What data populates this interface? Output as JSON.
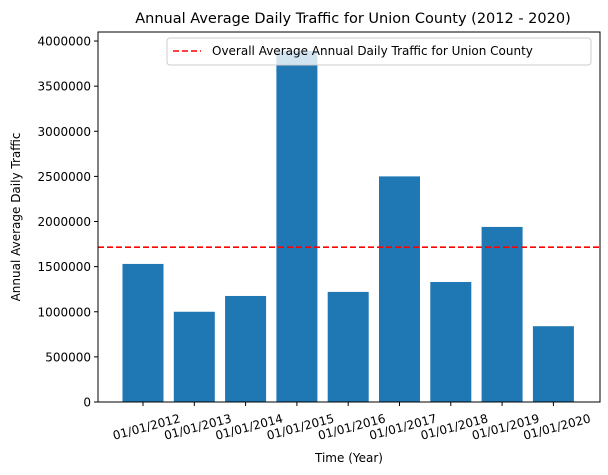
{
  "chart_data": {
    "type": "bar",
    "title": "Annual Average Daily Traffic for Union County (2012 - 2020)",
    "xlabel": "Time (Year)",
    "ylabel": "Annual Average Daily Traffic",
    "categories": [
      "01/01/2012",
      "01/01/2013",
      "01/01/2014",
      "01/01/2015",
      "01/01/2016",
      "01/01/2017",
      "01/01/2018",
      "01/01/2019",
      "01/01/2020"
    ],
    "values": [
      1530000,
      1000000,
      1175000,
      3890000,
      1220000,
      2500000,
      1330000,
      1940000,
      840000
    ],
    "ylim": [
      0,
      4100000
    ],
    "yticks": [
      0,
      500000,
      1000000,
      1500000,
      2000000,
      2500000,
      3000000,
      3500000,
      4000000
    ],
    "ytick_labels": [
      "0",
      "500000",
      "1000000",
      "1500000",
      "2000000",
      "2500000",
      "3000000",
      "3500000",
      "4000000"
    ],
    "reference_line": {
      "label": "Overall Average Annual Daily Traffic for Union County",
      "value": 1715000,
      "style": "dashed",
      "color": "#ff0000"
    },
    "bar_color": "#1f77b4",
    "legend_position": "upper right",
    "grid": false,
    "xtick_rotation": "slanted"
  }
}
